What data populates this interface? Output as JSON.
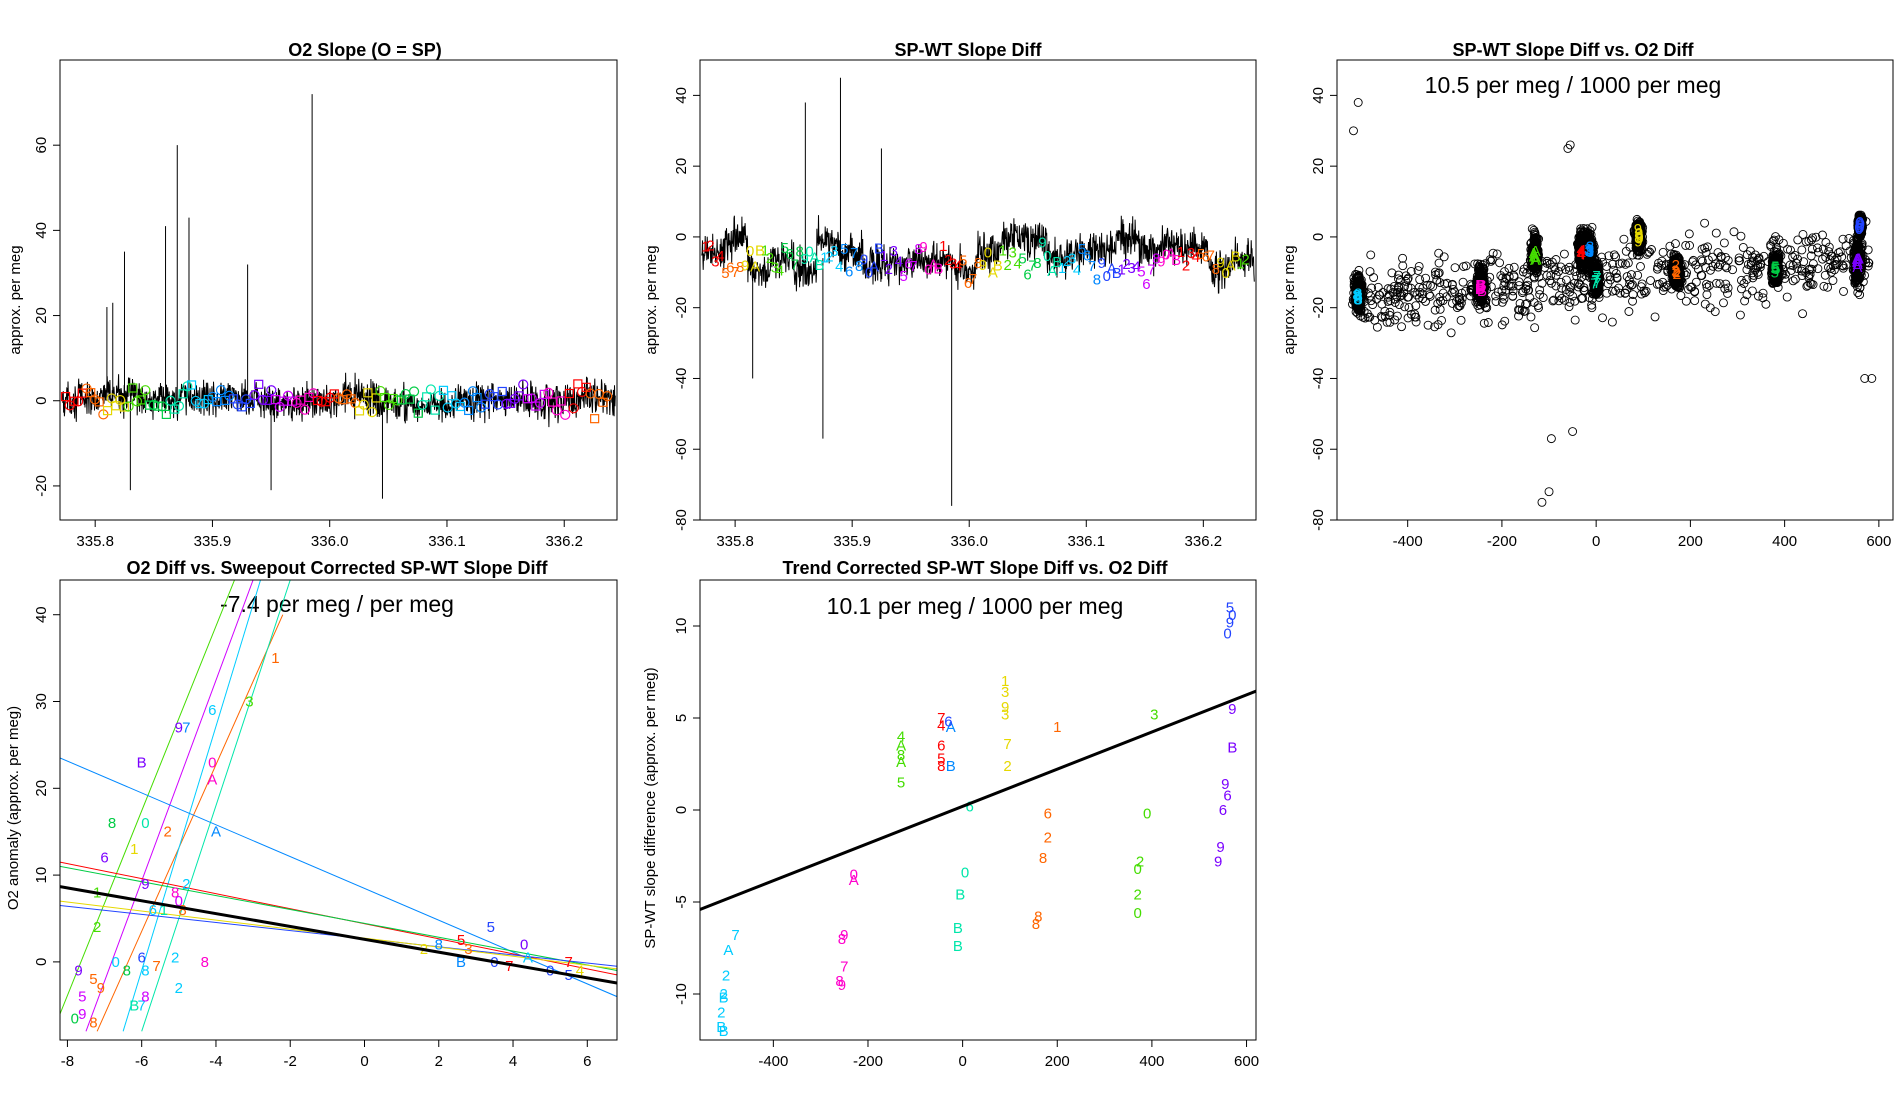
{
  "palette": [
    "#ff0000",
    "#ff6600",
    "#e6d800",
    "#44dd00",
    "#00cc44",
    "#00e6aa",
    "#00ccff",
    "#0088ff",
    "#2244ff",
    "#7a00ff",
    "#d000ff",
    "#ff00cc"
  ],
  "panel_line_color": "#000000",
  "chart_data": [
    {
      "id": "p1",
      "type": "line",
      "title": "O2 Slope (O = SP)",
      "ylabel": "approx. per meg",
      "xlabel": "",
      "xlim": [
        335.77,
        336.245
      ],
      "ylim": [
        -28,
        80
      ],
      "xticks": [
        335.8,
        335.9,
        336.0,
        336.1,
        336.2
      ],
      "xticklabels": [
        "335.8",
        "335.9",
        "336.0",
        "336.1",
        "336.2"
      ],
      "yticks": [
        -20,
        0,
        20,
        40,
        60
      ],
      "yticklabels": [
        "-20",
        "0",
        "20",
        "40",
        "60"
      ],
      "noise": {
        "center": 0,
        "amplitude": 7,
        "segments": 14,
        "segment_swing": 1.5
      },
      "spikes": [
        [
          335.81,
          22
        ],
        [
          335.815,
          23
        ],
        [
          335.825,
          35
        ],
        [
          335.86,
          41
        ],
        [
          335.87,
          60
        ],
        [
          335.88,
          43
        ],
        [
          335.93,
          32
        ],
        [
          335.985,
          72
        ],
        [
          335.83,
          -21
        ],
        [
          335.95,
          -21
        ],
        [
          336.045,
          -23
        ]
      ],
      "markers": {
        "count": 130,
        "center": 0,
        "spread": 5.5,
        "symbols": [
          "square",
          "circle"
        ]
      }
    },
    {
      "id": "p2",
      "type": "line",
      "title": "SP-WT Slope Diff",
      "ylabel": "approx. per meg",
      "xlabel": "",
      "xlim": [
        335.77,
        336.245
      ],
      "ylim": [
        -80,
        50
      ],
      "xticks": [
        335.8,
        335.9,
        336.0,
        336.1,
        336.2
      ],
      "xticklabels": [
        "335.8",
        "335.9",
        "336.0",
        "336.1",
        "336.2"
      ],
      "yticks": [
        -80,
        -60,
        -40,
        -20,
        0,
        20,
        40
      ],
      "yticklabels": [
        "-80",
        "-60",
        "-40",
        "-20",
        "0",
        "20",
        "40"
      ],
      "noise": {
        "center": -6,
        "amplitude": 9,
        "segments": 24,
        "segment_swing": 6
      },
      "spikes": [
        [
          335.86,
          38
        ],
        [
          335.89,
          45
        ],
        [
          335.925,
          25
        ],
        [
          335.815,
          -40
        ],
        [
          335.875,
          -57
        ],
        [
          335.985,
          -76
        ]
      ],
      "labels": {
        "count": 110,
        "center": -7,
        "spread": 8,
        "chars": [
          "1",
          "2",
          "3",
          "4",
          "5",
          "6",
          "7",
          "8",
          "9",
          "0",
          "A",
          "B"
        ]
      }
    },
    {
      "id": "p3",
      "type": "scatter",
      "title": "SP-WT Slope Diff vs. O2 Diff",
      "annotation": "10.5 per meg / 1000 per meg",
      "ylabel": "approx. per meg",
      "xlabel": "",
      "xlim": [
        -550,
        630
      ],
      "ylim": [
        -80,
        50
      ],
      "xticks": [
        -400,
        -200,
        0,
        200,
        400,
        600
      ],
      "xticklabels": [
        "-400",
        "-200",
        "0",
        "200",
        "400",
        "600"
      ],
      "yticks": [
        -80,
        -60,
        -40,
        -20,
        0,
        20,
        40
      ],
      "yticklabels": [
        "-80",
        "-60",
        "-40",
        "-20",
        "0",
        "20",
        "40"
      ],
      "clusters": [
        {
          "x": -505,
          "y": -16,
          "sx": 14,
          "sy": 6,
          "color": 6,
          "label": "8"
        },
        {
          "x": -245,
          "y": -14,
          "sx": 14,
          "sy": 6,
          "color": 11,
          "label": "B"
        },
        {
          "x": -130,
          "y": -5,
          "sx": 12,
          "sy": 6,
          "color": 3,
          "label": "A"
        },
        {
          "x": -30,
          "y": -4,
          "sx": 14,
          "sy": 6,
          "color": 0,
          "label": "4"
        },
        {
          "x": -15,
          "y": -4,
          "sx": 14,
          "sy": 6,
          "color": 7,
          "label": "3"
        },
        {
          "x": 0,
          "y": -12,
          "sx": 12,
          "sy": 5,
          "color": 5,
          "label": "7"
        },
        {
          "x": 90,
          "y": 0,
          "sx": 12,
          "sy": 5,
          "color": 2,
          "label": "9"
        },
        {
          "x": 170,
          "y": -10,
          "sx": 14,
          "sy": 5,
          "color": 1,
          "label": "2"
        },
        {
          "x": 380,
          "y": -9,
          "sx": 12,
          "sy": 5,
          "color": 4,
          "label": "5"
        },
        {
          "x": 555,
          "y": -7,
          "sx": 14,
          "sy": 8,
          "color": 9,
          "label": "A"
        },
        {
          "x": 560,
          "y": 3,
          "sx": 8,
          "sy": 3,
          "color": 8,
          "label": "0"
        }
      ],
      "outliers": [
        [
          -505,
          38
        ],
        [
          -515,
          30
        ],
        [
          -60,
          25
        ],
        [
          -55,
          26
        ],
        [
          -95,
          -57
        ],
        [
          -50,
          -55
        ],
        [
          -115,
          -75
        ],
        [
          -100,
          -72
        ],
        [
          570,
          -40
        ],
        [
          585,
          -40
        ]
      ]
    },
    {
      "id": "p4",
      "type": "scatter",
      "title": "O2 Diff vs. Sweepout Corrected SP-WT Slope Diff",
      "annotation": "-7.4 per meg / per meg",
      "ylabel": "O2 anomaly (approx. per meg)",
      "xlabel": "",
      "xlim": [
        -8.2,
        6.8
      ],
      "ylim": [
        -9,
        44
      ],
      "xticks": [
        -8,
        -6,
        -4,
        -2,
        0,
        2,
        4,
        6
      ],
      "xticklabels": [
        "-8",
        "-6",
        "-4",
        "-2",
        "0",
        "2",
        "4",
        "6"
      ],
      "yticks": [
        0,
        10,
        20,
        30,
        40
      ],
      "yticklabels": [
        "0",
        "10",
        "20",
        "30",
        "40"
      ],
      "fit": {
        "intercept": 2.6,
        "slope": -0.74
      },
      "lines": [
        {
          "color": 10,
          "p1": [
            -7.5,
            -8
          ],
          "p2": [
            -3.0,
            44
          ]
        },
        {
          "color": 1,
          "p1": [
            -7.2,
            -8
          ],
          "p2": [
            -2.2,
            40
          ]
        },
        {
          "color": 6,
          "p1": [
            -6.5,
            -8
          ],
          "p2": [
            -2.8,
            44
          ]
        },
        {
          "color": 3,
          "p1": [
            -8.2,
            -6
          ],
          "p2": [
            -3.5,
            44
          ]
        },
        {
          "color": 5,
          "p1": [
            -6.0,
            -8
          ],
          "p2": [
            -2.0,
            44
          ]
        },
        {
          "color": 7,
          "p1": [
            -8.2,
            23.5
          ],
          "p2": [
            6.8,
            -4
          ]
        },
        {
          "color": 0,
          "p1": [
            -8.2,
            11.5
          ],
          "p2": [
            6.8,
            -1.5
          ]
        },
        {
          "color": 4,
          "p1": [
            -8.2,
            11
          ],
          "p2": [
            6.8,
            -1
          ]
        },
        {
          "color": 8,
          "p1": [
            -8.2,
            6.5
          ],
          "p2": [
            6.8,
            -0.5
          ]
        },
        {
          "color": 2,
          "p1": [
            -8.2,
            7
          ],
          "p2": [
            6.8,
            -0.8
          ]
        }
      ],
      "points": [
        [
          "1",
          -2.4,
          35,
          1
        ],
        [
          "3",
          -3.1,
          30,
          3
        ],
        [
          "6",
          -4.1,
          29,
          6
        ],
        [
          "7",
          -4.8,
          27,
          7
        ],
        [
          "9",
          -5.0,
          27,
          9
        ],
        [
          "B",
          -6.0,
          23,
          9
        ],
        [
          "0",
          -4.1,
          23,
          11
        ],
        [
          "A",
          -4.1,
          21,
          11
        ],
        [
          "8",
          -6.8,
          16,
          4
        ],
        [
          "0",
          -5.9,
          16,
          5
        ],
        [
          "2",
          -5.3,
          15,
          1
        ],
        [
          "A",
          -4.0,
          15,
          7
        ],
        [
          "6",
          -7.0,
          12,
          9
        ],
        [
          "1",
          -6.2,
          13,
          2
        ],
        [
          "9",
          -5.9,
          9,
          9
        ],
        [
          "2",
          -4.8,
          9,
          6
        ],
        [
          "8",
          -5.1,
          8,
          11
        ],
        [
          "8",
          -4.9,
          6,
          1
        ],
        [
          "0",
          -5.0,
          7,
          10
        ],
        [
          "1",
          -7.2,
          8,
          3
        ],
        [
          "2",
          -7.2,
          4,
          3
        ],
        [
          "6",
          -5.7,
          6,
          6
        ],
        [
          "1",
          -5.4,
          6,
          5
        ],
        [
          "0",
          -6.7,
          0,
          6
        ],
        [
          "6",
          -6.0,
          0.5,
          8
        ],
        [
          "2",
          -5.1,
          0.5,
          6
        ],
        [
          "8",
          -4.3,
          0,
          11
        ],
        [
          "7",
          -5.6,
          -0.5,
          1
        ],
        [
          "8",
          -6.4,
          -1,
          4
        ],
        [
          "8",
          -5.9,
          -1,
          6
        ],
        [
          "2",
          -5.0,
          -3,
          6
        ],
        [
          "9",
          -7.7,
          -1,
          9
        ],
        [
          "5",
          -7.3,
          -2,
          1
        ],
        [
          "9",
          -7.1,
          -3,
          1
        ],
        [
          "5",
          -7.6,
          -4,
          10
        ],
        [
          "B",
          -6.2,
          -5,
          5
        ],
        [
          "7",
          -6.0,
          -5,
          6
        ],
        [
          "8",
          -5.9,
          -4,
          10
        ],
        [
          "0",
          -7.8,
          -6.5,
          4
        ],
        [
          "8",
          -7.3,
          -7,
          1
        ],
        [
          "9",
          -7.6,
          -6,
          10
        ],
        [
          "5",
          3.4,
          4,
          8
        ],
        [
          "2",
          1.6,
          1.5,
          2
        ],
        [
          "8",
          2.0,
          2,
          7
        ],
        [
          "5",
          2.6,
          2.5,
          0
        ],
        [
          "B",
          2.6,
          0,
          7
        ],
        [
          "3",
          2.8,
          1.5,
          1
        ],
        [
          "0",
          3.5,
          0,
          8
        ],
        [
          "7",
          3.9,
          -0.5,
          0
        ],
        [
          "A",
          4.4,
          0.5,
          6
        ],
        [
          "0",
          5.0,
          -1,
          8
        ],
        [
          "5",
          5.5,
          -1.5,
          8
        ],
        [
          "7",
          5.5,
          0,
          0
        ],
        [
          "4",
          5.8,
          -1,
          2
        ],
        [
          "0",
          4.3,
          2,
          9
        ]
      ]
    },
    {
      "id": "p5",
      "type": "scatter",
      "title": "Trend Corrected SP-WT Slope Diff vs. O2 Diff",
      "annotation": "10.1 per meg / 1000 per meg",
      "ylabel": "SP-WT slope difference (approx. per meg)",
      "xlabel": "",
      "xlim": [
        -555,
        620
      ],
      "ylim": [
        -12.5,
        12.5
      ],
      "xticks": [
        -400,
        -200,
        0,
        200,
        400,
        600
      ],
      "xticklabels": [
        "-400",
        "-200",
        "0",
        "200",
        "400",
        "600"
      ],
      "yticks": [
        -10,
        -5,
        0,
        5,
        10
      ],
      "yticklabels": [
        "-10",
        "-5",
        "0",
        "5",
        "10"
      ],
      "fit": {
        "intercept": 0.2,
        "slope": 0.0101
      },
      "points": [
        [
          "7",
          -480,
          -6.8,
          6
        ],
        [
          "A",
          -495,
          -7.6,
          6
        ],
        [
          "2",
          -500,
          -9.0,
          6
        ],
        [
          "2",
          -505,
          -10.0,
          6
        ],
        [
          "B",
          -505,
          -10.2,
          6
        ],
        [
          "2",
          -510,
          -11.0,
          6
        ],
        [
          "B",
          -510,
          -11.8,
          6
        ],
        [
          "B",
          -505,
          -12.0,
          6
        ],
        [
          "9",
          -250,
          -6.8,
          11
        ],
        [
          "8",
          -255,
          -7.0,
          11
        ],
        [
          "7",
          -250,
          -8.5,
          11
        ],
        [
          "8",
          -260,
          -9.3,
          11
        ],
        [
          "9",
          -255,
          -9.5,
          11
        ],
        [
          "0",
          -230,
          -3.5,
          11
        ],
        [
          "A",
          -230,
          -3.8,
          11
        ],
        [
          "A",
          -130,
          3.5,
          3
        ],
        [
          "8",
          -130,
          3.0,
          3
        ],
        [
          "A",
          -130,
          2.6,
          3
        ],
        [
          "5",
          -130,
          1.5,
          3
        ],
        [
          "4",
          -130,
          4.0,
          3
        ],
        [
          "7",
          -45,
          5.0,
          0
        ],
        [
          "4",
          -45,
          4.6,
          0
        ],
        [
          "6",
          -45,
          3.5,
          0
        ],
        [
          "5",
          -45,
          2.8,
          0
        ],
        [
          "8",
          -45,
          2.4,
          0
        ],
        [
          "A",
          -25,
          4.5,
          7
        ],
        [
          "B",
          -25,
          2.4,
          7
        ],
        [
          "6",
          -30,
          4.8,
          8
        ],
        [
          "6",
          15,
          0.2,
          5
        ],
        [
          "0",
          5,
          -3.4,
          5
        ],
        [
          "B",
          -5,
          -4.6,
          5
        ],
        [
          "B",
          -10,
          -6.4,
          5
        ],
        [
          "B",
          -10,
          -7.4,
          5
        ],
        [
          "1",
          90,
          7.0,
          2
        ],
        [
          "3",
          90,
          6.4,
          2
        ],
        [
          "9",
          90,
          5.6,
          2
        ],
        [
          "3",
          90,
          5.2,
          2
        ],
        [
          "7",
          95,
          3.6,
          2
        ],
        [
          "2",
          95,
          2.4,
          2
        ],
        [
          "1",
          200,
          4.5,
          1
        ],
        [
          "6",
          180,
          -0.2,
          1
        ],
        [
          "2",
          180,
          -1.5,
          1
        ],
        [
          "8",
          170,
          -2.6,
          1
        ],
        [
          "8",
          160,
          -5.8,
          1
        ],
        [
          "8",
          155,
          -6.2,
          1
        ],
        [
          "3",
          405,
          5.2,
          3
        ],
        [
          "0",
          390,
          -0.2,
          3
        ],
        [
          "2",
          375,
          -2.8,
          3
        ],
        [
          "0",
          370,
          -3.2,
          3
        ],
        [
          "2",
          370,
          -4.6,
          3
        ],
        [
          "0",
          370,
          -5.6,
          3
        ],
        [
          "5",
          565,
          11.0,
          8
        ],
        [
          "0",
          570,
          10.6,
          8
        ],
        [
          "9",
          565,
          10.2,
          8
        ],
        [
          "0",
          560,
          9.6,
          8
        ],
        [
          "9",
          570,
          5.5,
          9
        ],
        [
          "B",
          570,
          3.4,
          9
        ],
        [
          "9",
          555,
          1.4,
          9
        ],
        [
          "6",
          560,
          0.8,
          9
        ],
        [
          "6",
          550,
          0.0,
          9
        ],
        [
          "9",
          545,
          -2.0,
          9
        ],
        [
          "9",
          540,
          -2.8,
          9
        ]
      ]
    }
  ]
}
